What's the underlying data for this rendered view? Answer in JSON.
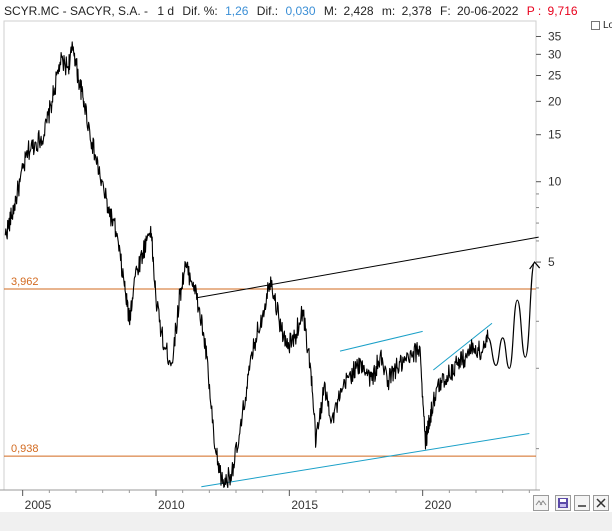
{
  "header": {
    "symbol": "SCYR.MC - SACYR, S.A. -",
    "period": "1 d",
    "dif_pct_label": "Dif. %:",
    "dif_pct": "1,26",
    "dif_label": "Dif.:",
    "dif": "0,030",
    "max_label": "M:",
    "max": "2,428",
    "min_label": "m:",
    "min": "2,378",
    "date_label": "F:",
    "date": "20-06-2022",
    "p_label": "P :",
    "p": "9,716"
  },
  "toolbar": {
    "log_label": "Log"
  },
  "levels": [
    {
      "label": "3,962",
      "value": 3.962,
      "color": "#d2691e"
    },
    {
      "label": "0,938",
      "value": 0.938,
      "color": "#d2691e"
    }
  ],
  "colors": {
    "price": "#000000",
    "support": "#1aa0c8",
    "resistance": "#000000",
    "level": "#d2691e",
    "accent": "#e8001c"
  },
  "chart_data": {
    "type": "line",
    "series": [
      {
        "values_x": [
          2004.35,
          2004.6,
          2004.9,
          2005.2,
          2005.5,
          2005.8,
          2006.1,
          2006.4,
          2006.7,
          2006.9,
          2007.1,
          2007.3,
          2007.6,
          2007.9,
          2008.2,
          2008.5,
          2008.8,
          2009.0,
          2009.2,
          2009.5,
          2009.8,
          2010.0,
          2010.3,
          2010.6,
          2010.9,
          2011.1,
          2011.4,
          2011.7,
          2011.9,
          2012.2,
          2012.5,
          2012.8,
          2013.1,
          2013.4,
          2013.7,
          2014.0,
          2014.3,
          2014.6,
          2014.9,
          2015.2,
          2015.5,
          2015.8,
          2016.0,
          2016.3,
          2016.6,
          2016.9,
          2017.2,
          2017.5,
          2017.8,
          2018.1,
          2018.4,
          2018.7,
          2019.0,
          2019.3,
          2019.6,
          2019.9,
          2020.1,
          2020.2,
          2020.4,
          2020.7,
          2021.0,
          2021.3,
          2021.6,
          2021.9,
          2022.2,
          2022.45
        ],
        "values_y": [
          6.3,
          7.5,
          10,
          13,
          14,
          15,
          20,
          28,
          27,
          32,
          24,
          20,
          14,
          10.5,
          8,
          6.5,
          4.2,
          3.0,
          4.4,
          5.4,
          6.8,
          3.6,
          2.4,
          2.1,
          3.8,
          4.8,
          4.2,
          3.0,
          2.2,
          1.0,
          0.74,
          0.8,
          1.05,
          1.7,
          2.5,
          3.2,
          4.4,
          3.1,
          2.4,
          2.6,
          3.3,
          2.0,
          1.05,
          1.7,
          1.3,
          1.55,
          1.85,
          2.0,
          2.05,
          1.8,
          2.2,
          1.8,
          2.0,
          2.1,
          2.2,
          2.4,
          1.05,
          1.2,
          1.5,
          1.8,
          1.9,
          2.1,
          2.2,
          2.4,
          2.3,
          2.6
        ]
      }
    ],
    "projection": {
      "x": [
        2022.45,
        2022.75,
        2023.0,
        2023.25,
        2023.55,
        2023.85,
        2024.2
      ],
      "y": [
        2.6,
        2.05,
        2.6,
        2.0,
        3.6,
        2.2,
        5.0
      ]
    },
    "trendlines": [
      {
        "name": "",
        "color": "#000000",
        "x": [
          2011.5,
          2024.35
        ],
        "y": [
          3.67,
          6.2
        ]
      },
      {
        "name": "",
        "color": "#1aa0c8",
        "x": [
          2011.7,
          2024.0
        ],
        "y": [
          0.72,
          1.14
        ]
      },
      {
        "name": "",
        "color": "#1aa0c8",
        "x": [
          2016.9,
          2020.0
        ],
        "y": [
          2.32,
          2.75
        ]
      },
      {
        "name": "",
        "color": "#1aa0c8",
        "x": [
          2020.4,
          2022.6
        ],
        "y": [
          1.97,
          2.95
        ]
      }
    ],
    "x_ticks": [
      "2005",
      "2010",
      "2015",
      "2020"
    ],
    "x_tick_values": [
      2005,
      2010,
      2015,
      2020
    ],
    "y_ticks": [
      "35",
      "30",
      "25",
      "20",
      "15",
      "10",
      "5"
    ],
    "y_tick_values": [
      35,
      30,
      25,
      20,
      15,
      10,
      5
    ],
    "xlim": [
      2004.3,
      2024.4
    ],
    "ylim": [
      0.7,
      40
    ],
    "y_scale": "log",
    "title": "",
    "xlabel": "",
    "ylabel": ""
  }
}
